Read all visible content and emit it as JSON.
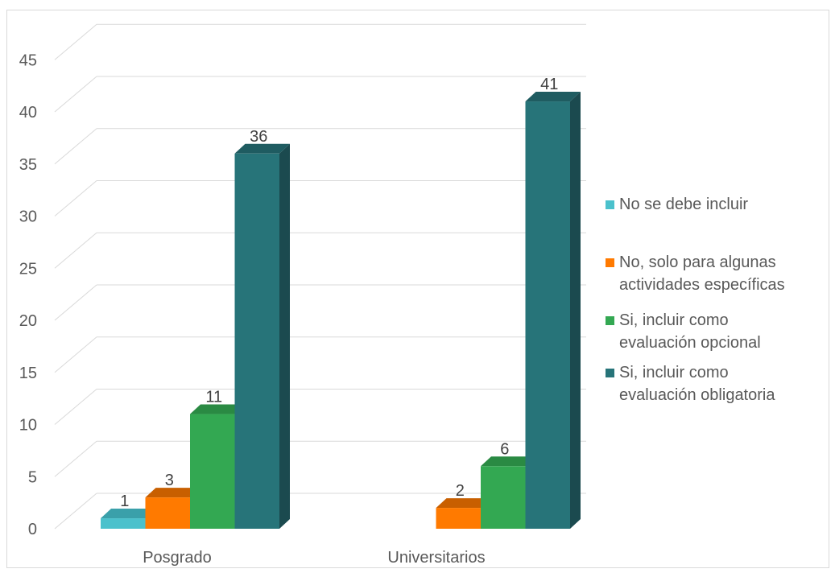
{
  "chart_data": {
    "type": "bar",
    "categories": [
      "Posgrado",
      "Universitarios"
    ],
    "series": [
      {
        "name": "No se debe incluir",
        "values": [
          1,
          0
        ],
        "color": "#4bc1cc",
        "side": "#2e8b95",
        "top": "#3aa0aa"
      },
      {
        "name": "No, solo para algunas\nactividades específicas",
        "values": [
          3,
          2
        ],
        "color": "#ff7a00",
        "side": "#b85600",
        "top": "#c85f00"
      },
      {
        "name": "Si, incluir como\nevaluación opcional",
        "values": [
          11,
          6
        ],
        "color": "#33a852",
        "side": "#227538",
        "top": "#2a8a43"
      },
      {
        "name": "Si, incluir como\nevaluación obligatoria",
        "values": [
          36,
          41
        ],
        "color": "#277479",
        "side": "#1b4a4f",
        "top": "#1f5c61"
      }
    ],
    "ylim": [
      0,
      45
    ],
    "yticks": [
      "0",
      "5",
      "10",
      "15",
      "20",
      "25",
      "30",
      "35",
      "40",
      "45"
    ],
    "grid": true,
    "legend": "right",
    "title": "",
    "xlabel": "",
    "ylabel": ""
  }
}
